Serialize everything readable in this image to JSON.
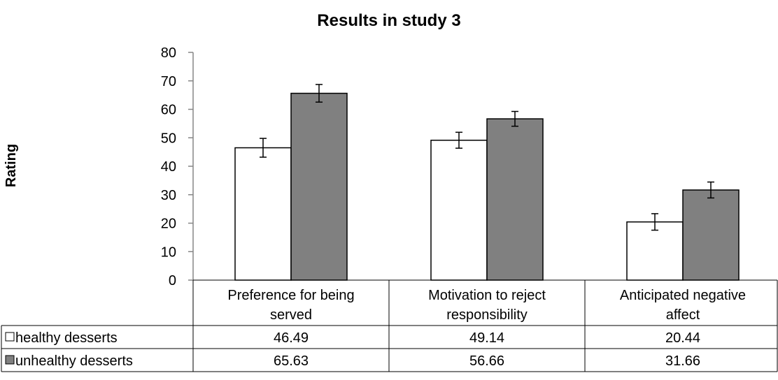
{
  "chart_data": {
    "type": "bar",
    "title": "Results in study 3",
    "xlabel": "",
    "ylabel": "Rating",
    "ylim": [
      0,
      80
    ],
    "yticks": [
      0,
      10,
      20,
      30,
      40,
      50,
      60,
      70,
      80
    ],
    "categories": [
      [
        "Preference for being",
        "served"
      ],
      [
        "Motivation to reject",
        "responsibility"
      ],
      [
        "Anticipated negative",
        "affect"
      ]
    ],
    "series": [
      {
        "name": "healthy desserts",
        "color": "#ffffff",
        "values": [
          46.49,
          49.14,
          20.44
        ],
        "labels": [
          "46.49",
          "49.14",
          "20.44"
        ],
        "error": [
          3.3,
          2.8,
          2.9
        ]
      },
      {
        "name": "unhealthy desserts",
        "color": "#808080",
        "values": [
          65.63,
          56.66,
          31.66
        ],
        "labels": [
          "65.63",
          "56.66",
          "31.66"
        ],
        "error": [
          3.1,
          2.6,
          2.8
        ]
      }
    ],
    "grid": false,
    "legend": "data-table"
  }
}
